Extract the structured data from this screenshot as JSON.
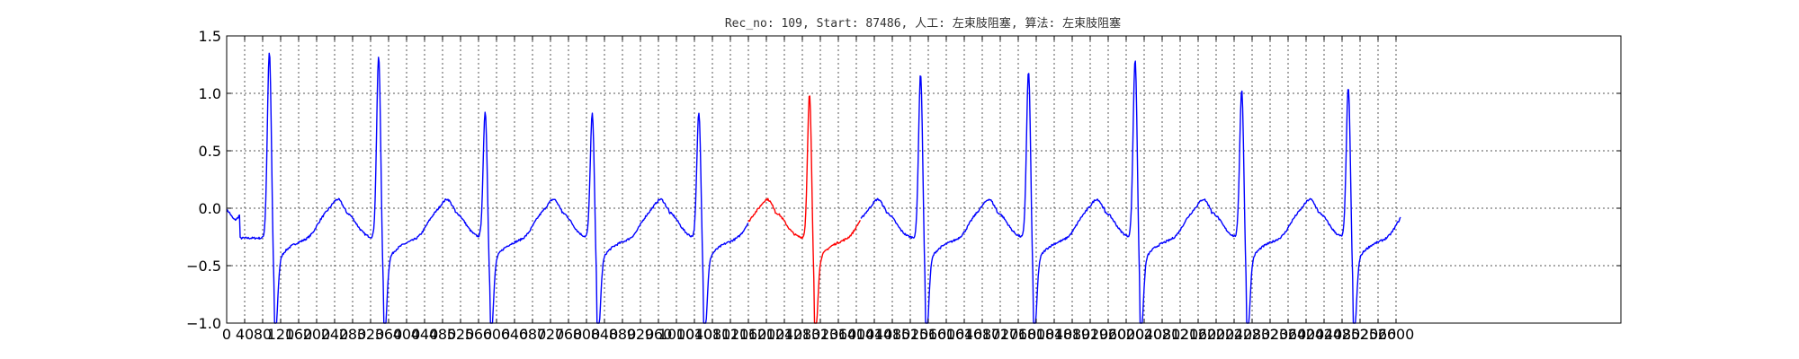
{
  "chart_data": {
    "type": "line",
    "title": "Rec_no: 109, Start: 87486, 人工: 左束肢阻塞, 算法: 左束肢阻塞",
    "xlabel": "",
    "ylabel": "",
    "xlim": [
      0,
      3100
    ],
    "ylim": [
      -1.0,
      1.5
    ],
    "grid": true,
    "xticks": [
      0,
      40,
      80,
      120,
      160,
      200,
      240,
      280,
      320,
      360,
      400,
      440,
      480,
      520,
      560,
      600,
      640,
      680,
      720,
      760,
      800,
      840,
      880,
      920,
      960,
      1000,
      1040,
      1080,
      1120,
      1160,
      1200,
      1240,
      1280,
      1320,
      1360,
      1400,
      1440,
      1480,
      1520,
      1560,
      1600,
      1640,
      1680,
      1720,
      1760,
      1800,
      1840,
      1880,
      1920,
      1960,
      2000,
      2040,
      2080,
      2120,
      2160,
      2200,
      2240,
      2280,
      2320,
      2360,
      2400,
      2440,
      2480,
      2520,
      2560,
      2600
    ],
    "xtick_labels": [
      "0",
      "40",
      "80",
      "120",
      "160",
      "200",
      "240",
      "280",
      "320",
      "360",
      "400",
      "440",
      "480",
      "520",
      "560",
      "600",
      "640",
      "680",
      "720",
      "760",
      "800",
      "840",
      "880",
      "920",
      "960",
      "1000",
      "1040",
      "1080",
      "1120",
      "1160",
      "1200",
      "1240",
      "1280",
      "1320",
      "1360",
      "1400",
      "1440",
      "1480",
      "1520",
      "1560",
      "1600",
      "1640",
      "1680",
      "1720",
      "1760",
      "1800",
      "1840",
      "1880",
      "1920",
      "1960",
      "2000",
      "2040",
      "2080",
      "2120",
      "2160",
      "2200",
      "2240",
      "2280",
      "2320",
      "2360",
      "2400",
      "2440",
      "2480",
      "2520",
      "2560",
      "2600"
    ],
    "yticks": [
      -1.0,
      -0.5,
      0.0,
      0.5,
      1.0,
      1.5
    ],
    "ytick_labels": [
      "−1.0",
      "−0.5",
      "0.0",
      "0.5",
      "1.0",
      "1.5"
    ],
    "beat_r_peaks": [
      95,
      338,
      575,
      813,
      1050,
      1296,
      1543,
      1783,
      2020,
      2257,
      2494
    ],
    "beat_r_amplitudes": [
      1.38,
      1.34,
      0.86,
      0.84,
      0.85,
      1.01,
      1.19,
      1.21,
      1.31,
      1.05,
      1.07
    ],
    "signal_end": 2610,
    "series": [
      {
        "color": "#0000ff",
        "x_range": [
          0,
          1160
        ]
      },
      {
        "color": "#ff0000",
        "x_range": [
          1160,
          1410
        ]
      },
      {
        "color": "#0000ff",
        "x_range": [
          1410,
          2610
        ]
      }
    ]
  }
}
